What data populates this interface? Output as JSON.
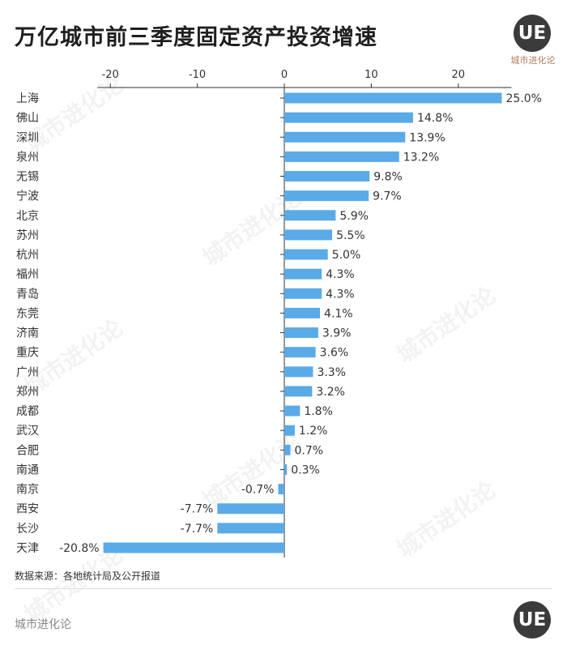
{
  "title": "万亿城市前三季度固定资产投资增速",
  "brand": {
    "logo_letters": "UE",
    "name": "城市进化论"
  },
  "watermark": {
    "text": "城市进化论"
  },
  "source": "数据来源：各地统计局及公开报道",
  "footer": "城市进化论",
  "colors": {
    "bar": "#5aaae8",
    "axis": "#333333"
  },
  "chart_data": {
    "type": "bar",
    "orientation": "horizontal",
    "title": "万亿城市前三季度固定资产投资增速",
    "xlim": [
      -20,
      25
    ],
    "xticks": [
      -20,
      -10,
      0,
      10,
      20
    ],
    "xtick_labels": [
      "-20",
      "-10",
      "0",
      "10",
      "20"
    ],
    "categories": [
      "上海",
      "佛山",
      "深圳",
      "泉州",
      "无锡",
      "宁波",
      "北京",
      "苏州",
      "杭州",
      "福州",
      "青岛",
      "东莞",
      "济南",
      "重庆",
      "广州",
      "郑州",
      "成都",
      "武汉",
      "合肥",
      "南通",
      "南京",
      "西安",
      "长沙",
      "天津"
    ],
    "values": [
      25.0,
      14.8,
      13.9,
      13.2,
      9.8,
      9.7,
      5.9,
      5.5,
      5.0,
      4.3,
      4.3,
      4.1,
      3.9,
      3.6,
      3.3,
      3.2,
      1.8,
      1.2,
      0.7,
      0.3,
      -0.7,
      -7.7,
      -7.7,
      -20.8
    ],
    "value_labels": [
      "25.0%",
      "14.8%",
      "13.9%",
      "13.2%",
      "9.8%",
      "9.7%",
      "5.9%",
      "5.5%",
      "5.0%",
      "4.3%",
      "4.3%",
      "4.1%",
      "3.9%",
      "3.6%",
      "3.3%",
      "3.2%",
      "1.8%",
      "1.2%",
      "0.7%",
      "0.3%",
      "-0.7%",
      "-7.7%",
      "-7.7%",
      "-20.8%"
    ],
    "grid": false
  }
}
